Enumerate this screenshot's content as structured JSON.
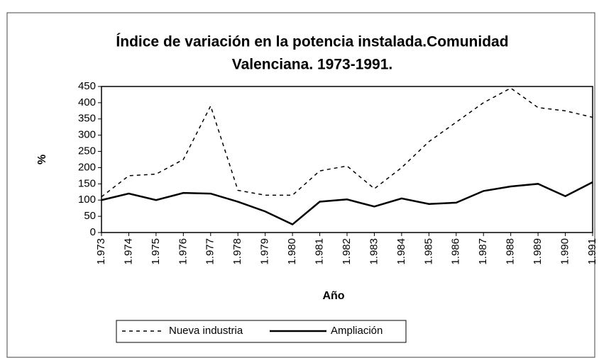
{
  "chart_data": {
    "type": "line",
    "title": [
      "Índice de variación en la potencia instalada.Comunidad",
      "Valenciana. 1973-1991."
    ],
    "x_label": "Año",
    "y_label": "%",
    "categories": [
      "1.973",
      "1.974",
      "1.975",
      "1.976",
      "1.977",
      "1.978",
      "1.979",
      "1.980",
      "1.981",
      "1.982",
      "1.983",
      "1.984",
      "1.985",
      "1.986",
      "1.987",
      "1.988",
      "1.989",
      "1.990",
      "1.991"
    ],
    "series": [
      {
        "name": "Nueva industria",
        "color": "#000000",
        "dash": true,
        "values": [
          110,
          175,
          180,
          225,
          390,
          130,
          115,
          115,
          190,
          205,
          135,
          200,
          280,
          340,
          400,
          445,
          385,
          375,
          355
        ]
      },
      {
        "name": "Ampliación",
        "color": "#000000",
        "dash": false,
        "values": [
          100,
          120,
          100,
          122,
          120,
          95,
          65,
          25,
          95,
          102,
          80,
          105,
          88,
          92,
          128,
          142,
          150,
          112,
          155
        ]
      }
    ],
    "ylim": [
      0,
      450
    ],
    "yticks": [
      0,
      50,
      100,
      150,
      200,
      250,
      300,
      350,
      400,
      450
    ],
    "grid": false,
    "legend": "bottom"
  }
}
